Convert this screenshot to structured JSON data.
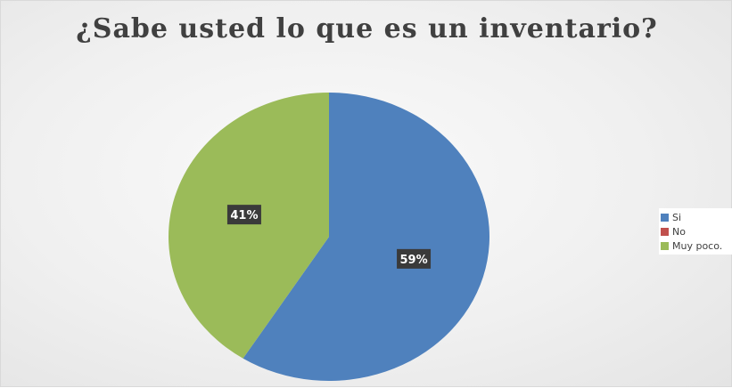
{
  "chart_data": {
    "type": "pie",
    "title": "¿Sabe usted lo que es un inventario?",
    "categories": [
      "Si",
      "No",
      "Muy poco."
    ],
    "values": [
      59,
      0,
      41
    ],
    "data_labels": [
      "59%",
      "",
      "41%"
    ],
    "colors": [
      "#4f81bd",
      "#c0504d",
      "#9bbb59"
    ],
    "legend_position": "right"
  }
}
